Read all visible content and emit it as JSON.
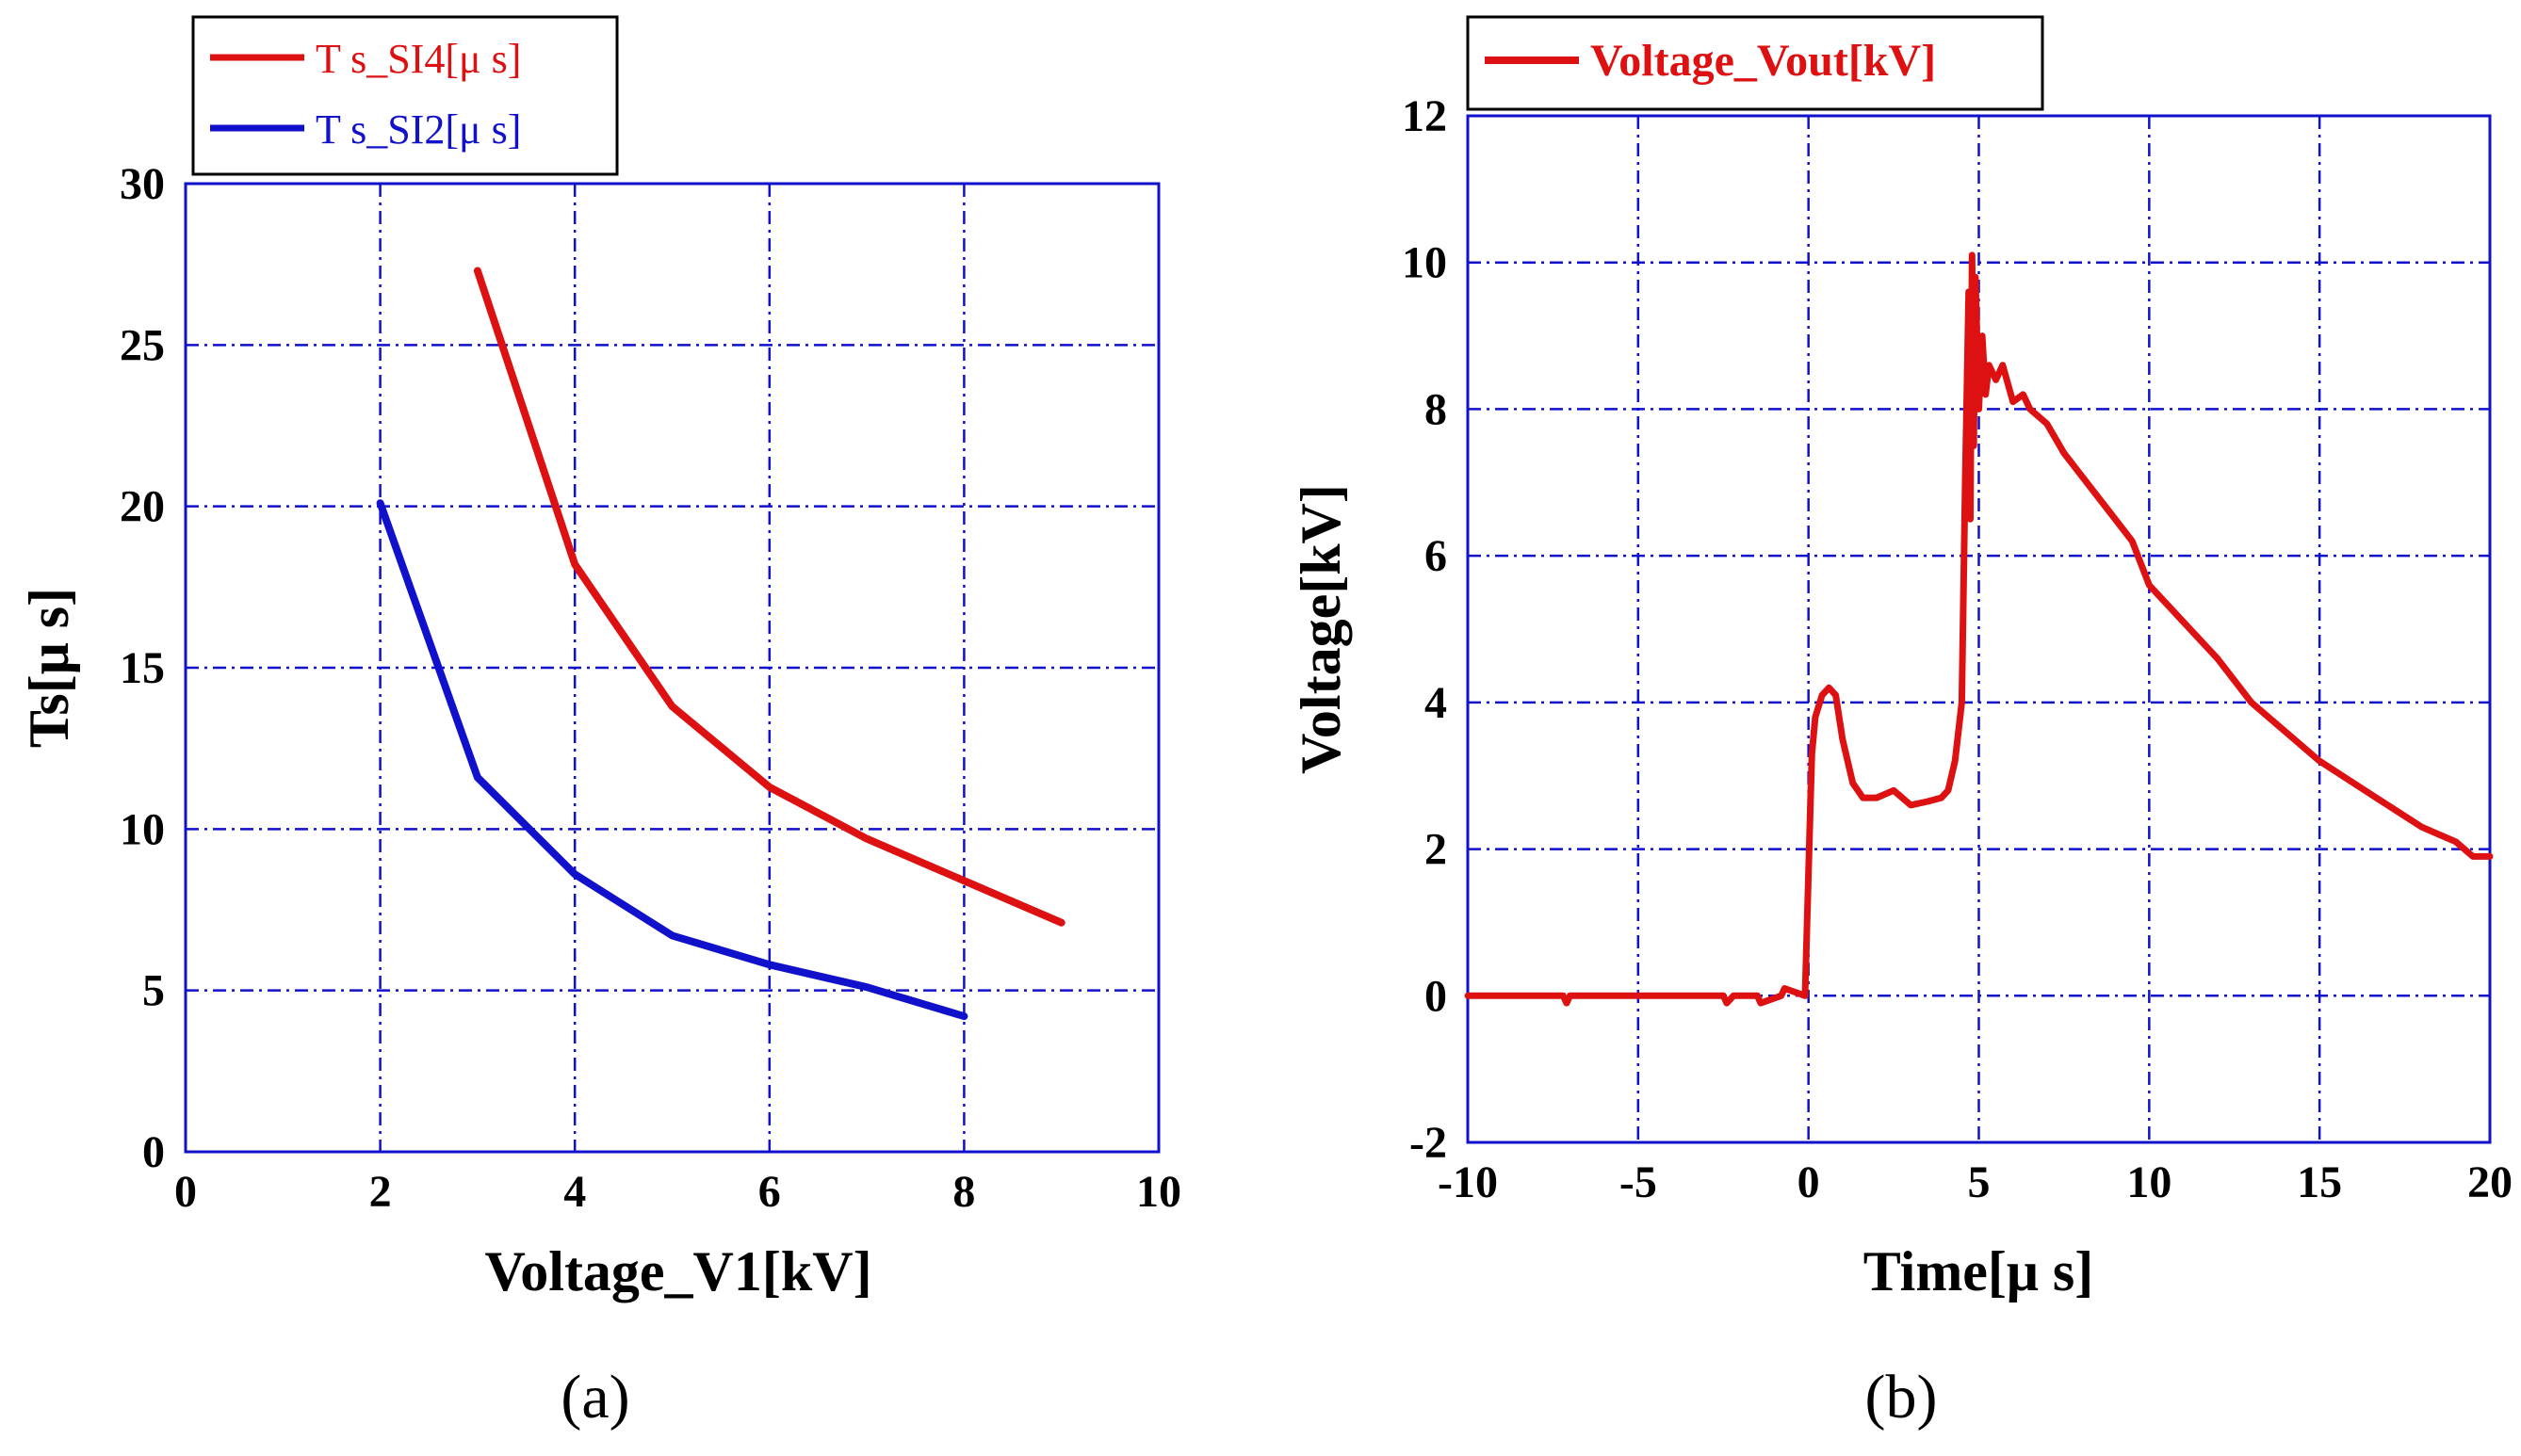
{
  "chart_data": [
    {
      "type": "line",
      "panel_label": "(a)",
      "xlabel": "Voltage_V1[kV]",
      "ylabel": "Ts[μ s]",
      "xlim": [
        0,
        10
      ],
      "ylim": [
        0,
        30
      ],
      "xticks": [
        0,
        2,
        4,
        6,
        8,
        10
      ],
      "yticks": [
        0,
        5,
        10,
        15,
        20,
        25,
        30
      ],
      "grid": true,
      "legend_position": "top-left, above plot",
      "series": [
        {
          "name": "T s_SI4[μ  s]",
          "color": "#dd1111",
          "x": [
            3,
            4,
            5,
            6,
            7,
            8,
            9
          ],
          "y": [
            27.3,
            18.2,
            13.8,
            11.3,
            9.7,
            8.4,
            7.1
          ]
        },
        {
          "name": "T s_SI2[μ  s]",
          "color": "#1111cc",
          "x": [
            2,
            3,
            4,
            5,
            6,
            7,
            8
          ],
          "y": [
            20.1,
            11.6,
            8.6,
            6.7,
            5.8,
            5.1,
            4.2
          ]
        }
      ]
    },
    {
      "type": "line",
      "panel_label": "(b)",
      "xlabel": "Time[μ s]",
      "ylabel": "Voltage[kV]",
      "xlim": [
        -10,
        20
      ],
      "ylim": [
        -2,
        12
      ],
      "xticks": [
        -10,
        -5,
        0,
        5,
        10,
        15,
        20
      ],
      "yticks": [
        -2,
        0,
        2,
        4,
        6,
        8,
        10,
        12
      ],
      "grid": true,
      "legend_position": "top-left, above plot",
      "series": [
        {
          "name": "Voltage_Vout[kV]",
          "color": "#dd1111",
          "x": [
            -10,
            -7.2,
            -7.1,
            -7.0,
            -2.5,
            -2.4,
            -2.2,
            -1.5,
            -1.4,
            -0.8,
            -0.7,
            -0.1,
            0.05,
            0.1,
            0.2,
            0.4,
            0.6,
            0.8,
            1.0,
            1.3,
            1.6,
            2.0,
            2.5,
            3.0,
            3.5,
            3.9,
            4.1,
            4.3,
            4.5,
            4.6,
            4.7,
            4.75,
            4.8,
            4.85,
            4.9,
            5.0,
            5.1,
            5.2,
            5.3,
            5.5,
            5.7,
            6.0,
            6.3,
            6.5,
            7.0,
            7.5,
            8.0,
            8.5,
            9.0,
            9.5,
            10.0,
            11.0,
            12.0,
            13.0,
            14.0,
            15.0,
            16.0,
            17.0,
            18.0,
            19.0,
            19.5,
            20.0
          ],
          "y": [
            0,
            0,
            -0.1,
            0,
            0,
            -0.1,
            0,
            0,
            -0.1,
            0,
            0.1,
            0,
            2.5,
            3.3,
            3.8,
            4.1,
            4.2,
            4.1,
            3.5,
            2.9,
            2.7,
            2.7,
            2.8,
            2.6,
            2.65,
            2.7,
            2.8,
            3.2,
            4.0,
            7.0,
            9.6,
            6.5,
            10.1,
            7.5,
            9.8,
            8.0,
            9.0,
            8.2,
            8.6,
            8.4,
            8.6,
            8.1,
            8.2,
            8.0,
            7.8,
            7.4,
            7.1,
            6.8,
            6.5,
            6.2,
            5.6,
            5.1,
            4.6,
            4.0,
            3.6,
            3.2,
            2.9,
            2.6,
            2.3,
            2.1,
            1.9,
            1.9
          ]
        }
      ]
    }
  ]
}
